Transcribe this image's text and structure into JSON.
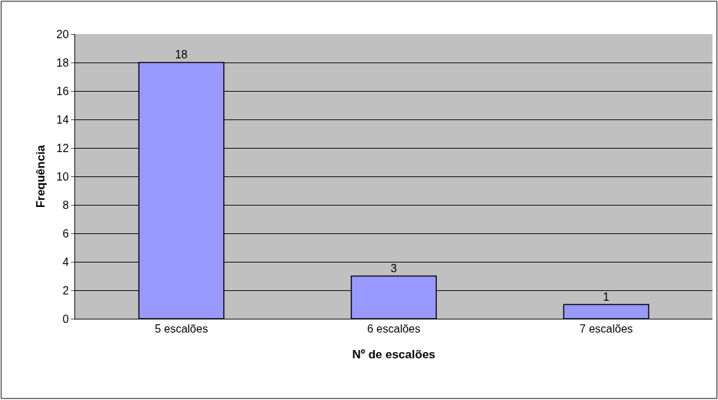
{
  "chart_data": {
    "type": "bar",
    "xlabel": "Nº de escalões",
    "ylabel": "Frequência",
    "categories": [
      "5 escalões",
      "6 escalões",
      "7 escalões"
    ],
    "values": [
      18,
      3,
      1
    ],
    "color": "#9999ff",
    "data_labels": true,
    "ylim": [
      0,
      20
    ],
    "yticks": [
      0,
      2,
      4,
      6,
      8,
      10,
      12,
      14,
      16,
      18,
      20
    ],
    "grid": "y"
  }
}
